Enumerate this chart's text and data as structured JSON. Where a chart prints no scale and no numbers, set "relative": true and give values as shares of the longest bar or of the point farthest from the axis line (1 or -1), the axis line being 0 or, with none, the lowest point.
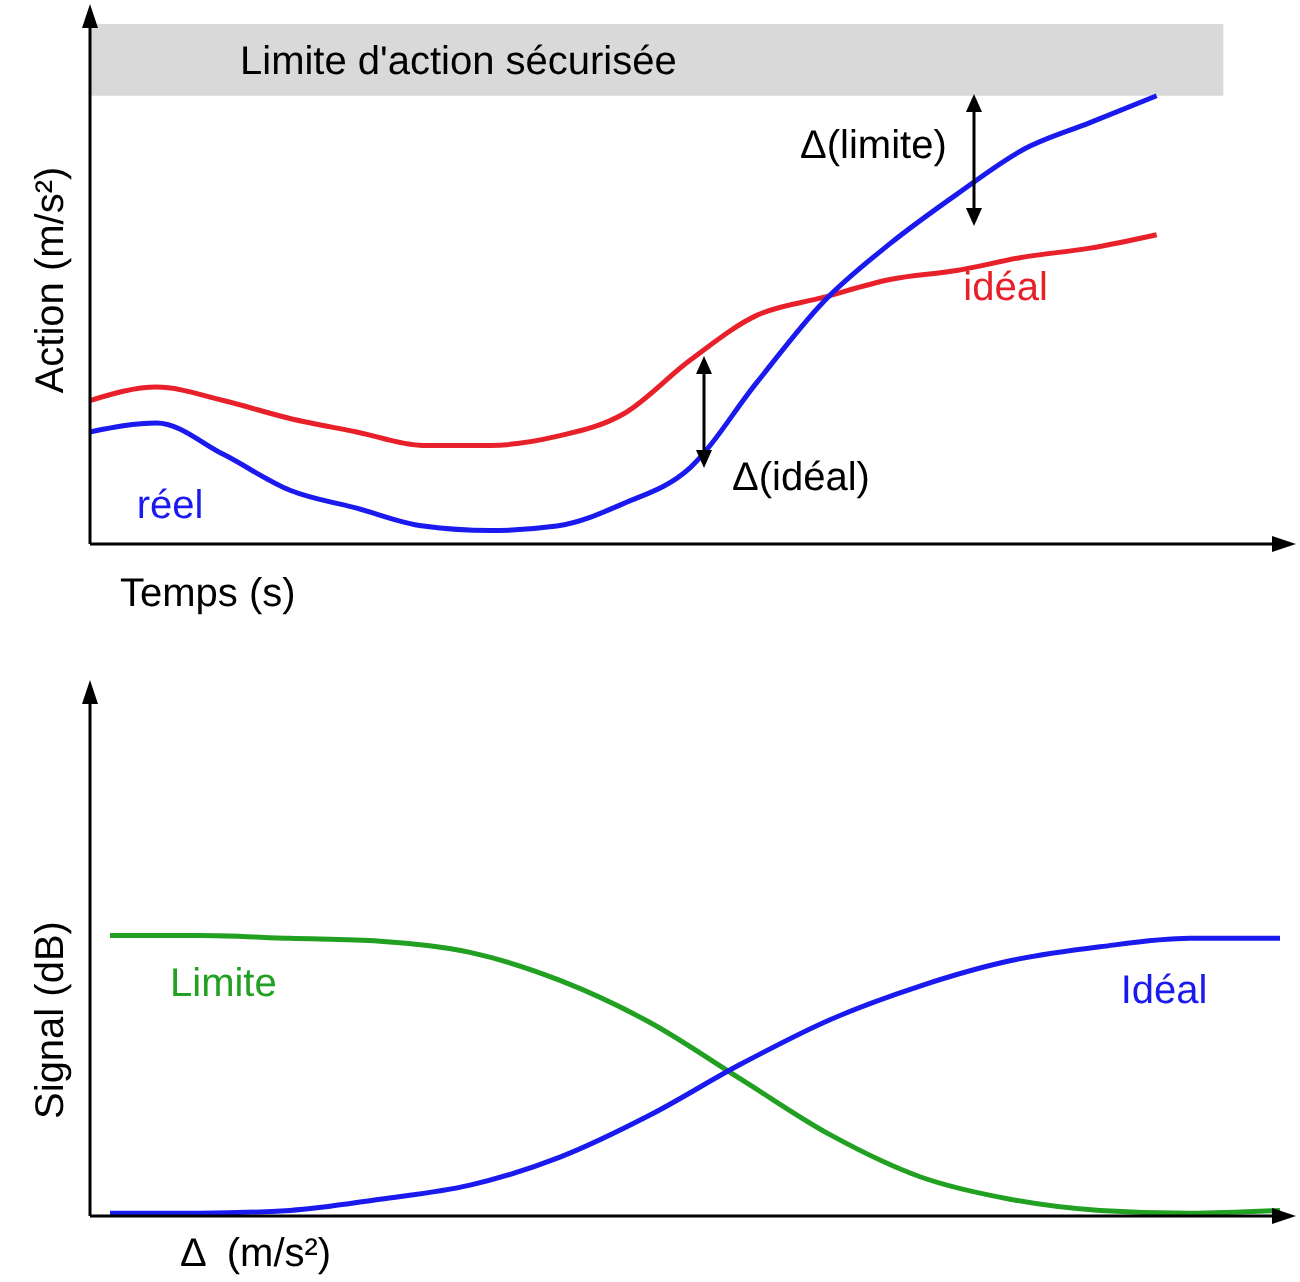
{
  "chart_data": [
    {
      "type": "line",
      "relative": true,
      "ylabel": "Action (m/s²)",
      "xlabel": "Temps (s)",
      "marker": "none",
      "categories": [
        null,
        null,
        null,
        null,
        null,
        null,
        null,
        null,
        null,
        null,
        null,
        null,
        null,
        null,
        null,
        null,
        null,
        null,
        null
      ],
      "series": [
        {
          "name": "idéal",
          "color": "#e8202a",
          "values": [
            0.32,
            0.35,
            0.32,
            0.28,
            0.25,
            0.22,
            0.22,
            0.24,
            0.29,
            0.41,
            0.51,
            0.55,
            0.59,
            0.61,
            0.64,
            0.66,
            0.69,
            null,
            null
          ]
        },
        {
          "name": "réel",
          "color": "#1a1aef",
          "values": [
            0.25,
            0.27,
            0.2,
            0.12,
            0.08,
            0.04,
            0.03,
            0.04,
            0.09,
            0.17,
            0.36,
            0.54,
            0.67,
            0.78,
            0.88,
            0.94,
            1,
            null,
            null
          ]
        }
      ],
      "bands": [
        {
          "axis": "y",
          "from": 1,
          "to": 1.16,
          "label": "Limite d'action sécurisée",
          "color": "#d9d9d9"
        }
      ],
      "annotations": [
        "Δ(limite)",
        "Δ(idéal)"
      ]
    },
    {
      "type": "line",
      "relative": true,
      "ylabel": "Signal (dB)",
      "xlabel": "Δ  (m/s²)",
      "marker": "none",
      "categories": [
        null,
        null,
        null,
        null,
        null,
        null,
        null,
        null,
        null,
        null,
        null,
        null,
        null,
        null
      ],
      "series": [
        {
          "name": "Limite",
          "color": "#22a022",
          "values": [
            1,
            1,
            0.99,
            0.98,
            0.94,
            0.84,
            0.69,
            0.49,
            0.29,
            0.14,
            0.06,
            0.02,
            0.01,
            0.02
          ]
        },
        {
          "name": "Idéal",
          "color": "#1a1aef",
          "values": [
            0.01,
            0.01,
            0.02,
            0.06,
            0.11,
            0.21,
            0.36,
            0.54,
            0.7,
            0.82,
            0.91,
            0.96,
            0.99,
            0.99
          ]
        }
      ]
    }
  ]
}
